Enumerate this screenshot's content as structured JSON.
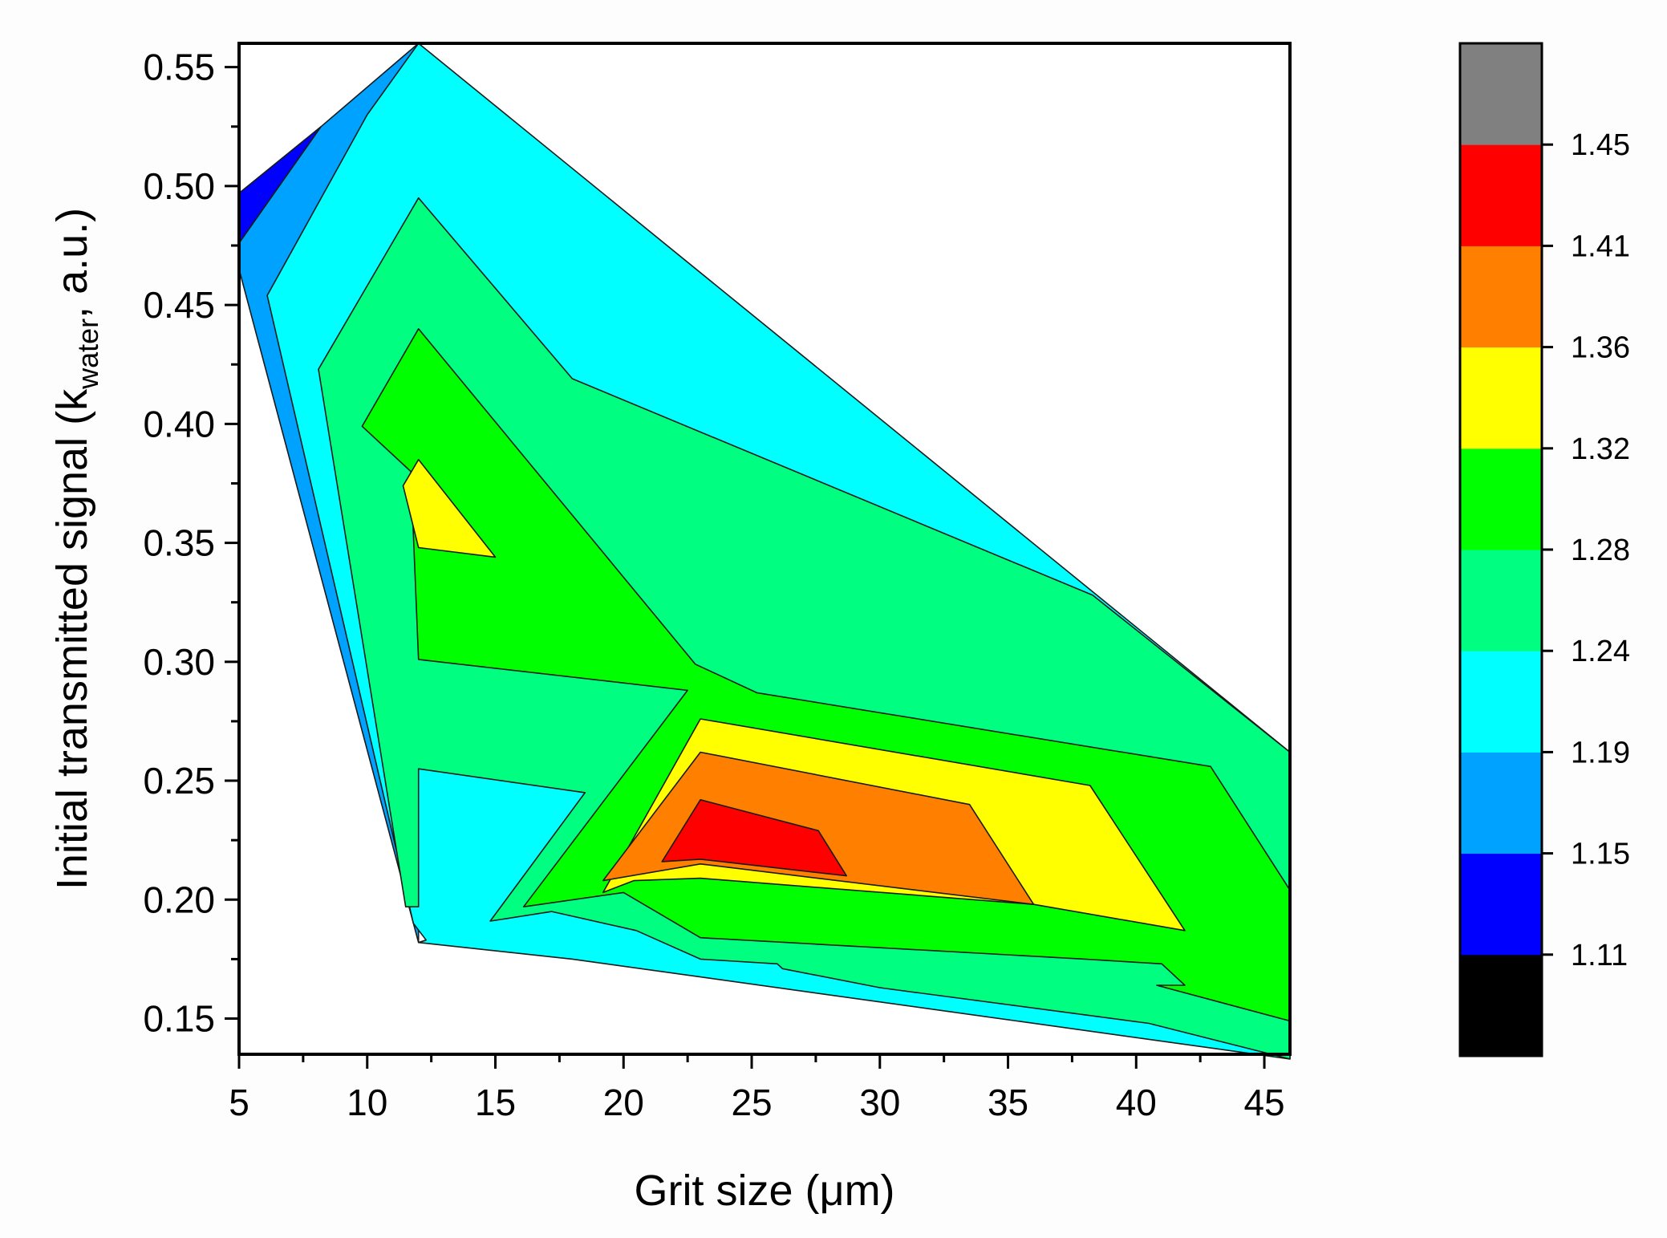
{
  "chart_data": {
    "type": "contour",
    "title": "",
    "xlabel": "Grit size (μm)",
    "ylabel": {
      "prefix": "Initial transmitted signal (k",
      "subscript": "water",
      "suffix": ", a.u.)"
    },
    "xlim": [
      5,
      46
    ],
    "ylim": [
      0.135,
      0.56
    ],
    "x_ticks": [
      "5",
      "10",
      "15",
      "20",
      "25",
      "30",
      "35",
      "40",
      "45"
    ],
    "y_ticks": [
      "0.15",
      "0.20",
      "0.25",
      "0.30",
      "0.35",
      "0.40",
      "0.45",
      "0.50",
      "0.55"
    ],
    "colorbar": {
      "colors": [
        "#000000",
        "#0000ff",
        "#00a2ff",
        "#00ffff",
        "#00ff80",
        "#00ff00",
        "#ffff00",
        "#ff8000",
        "#ff0000",
        "#808080"
      ],
      "levels": [
        "1.11",
        "1.15",
        "1.19",
        "1.24",
        "1.28",
        "1.32",
        "1.36",
        "1.41",
        "1.45"
      ]
    },
    "regions": [
      {
        "level": "1.15-1.19",
        "color": "#0000ff",
        "points": [
          [
            5,
            0.497
          ],
          [
            8.2,
            0.525
          ],
          [
            5,
            0.476
          ]
        ]
      },
      {
        "level": "1.19-1.24",
        "color": "#00a2ff",
        "points": [
          [
            5,
            0.476
          ],
          [
            8.2,
            0.525
          ],
          [
            12,
            0.56
          ],
          [
            12,
            0.182
          ],
          [
            5,
            0.465
          ]
        ]
      },
      {
        "level": "1.24-1.28",
        "color": "#00ffff",
        "points": [
          [
            12,
            0.56
          ],
          [
            46,
            0.262
          ],
          [
            46,
            0.133
          ],
          [
            18,
            0.175
          ],
          [
            12,
            0.182
          ],
          [
            12.3,
            0.183
          ],
          [
            11.8,
            0.19
          ],
          [
            6.1,
            0.454
          ],
          [
            10,
            0.53
          ]
        ]
      },
      {
        "level": "1.28-1.32",
        "color": "#00ff80",
        "points": [
          [
            12,
            0.495
          ],
          [
            18,
            0.419
          ],
          [
            38.3,
            0.328
          ],
          [
            46,
            0.262
          ],
          [
            46,
            0.133
          ],
          [
            40.5,
            0.148
          ],
          [
            30,
            0.163
          ],
          [
            26.2,
            0.171
          ],
          [
            26,
            0.173
          ],
          [
            23,
            0.175
          ],
          [
            20.5,
            0.187
          ],
          [
            17.2,
            0.195
          ],
          [
            14.8,
            0.191
          ],
          [
            18.5,
            0.245
          ],
          [
            12,
            0.255
          ],
          [
            12,
            0.197
          ],
          [
            11.5,
            0.197
          ],
          [
            8.1,
            0.423
          ]
        ]
      },
      {
        "level": "1.32-1.36",
        "color": "#00ff00",
        "points": [
          [
            12,
            0.44
          ],
          [
            22.8,
            0.299
          ],
          [
            25.2,
            0.287
          ],
          [
            42.9,
            0.256
          ],
          [
            46,
            0.204
          ],
          [
            46,
            0.149
          ],
          [
            40.8,
            0.164
          ],
          [
            41.9,
            0.164
          ],
          [
            41,
            0.173
          ],
          [
            38,
            0.175
          ],
          [
            23,
            0.184
          ],
          [
            20,
            0.203
          ],
          [
            16.1,
            0.197
          ],
          [
            22.5,
            0.288
          ],
          [
            12,
            0.301
          ],
          [
            11.7,
            0.38
          ],
          [
            9.8,
            0.399
          ]
        ]
      },
      {
        "level": "1.36-1.41",
        "color": "#ffff00",
        "points": [
          [
            23,
            0.276
          ],
          [
            38.2,
            0.248
          ],
          [
            41.9,
            0.187
          ],
          [
            36,
            0.198
          ],
          [
            23,
            0.209
          ],
          [
            20.4,
            0.208
          ],
          [
            19.2,
            0.203
          ]
        ]
      },
      {
        "level": "1.36-1.41",
        "color": "#ffff00",
        "points": [
          [
            12,
            0.385
          ],
          [
            15,
            0.344
          ],
          [
            12,
            0.348
          ],
          [
            11.4,
            0.374
          ]
        ]
      },
      {
        "level": "1.41-1.45",
        "color": "#ff8000",
        "points": [
          [
            23,
            0.262
          ],
          [
            33.5,
            0.24
          ],
          [
            36,
            0.198
          ],
          [
            23,
            0.215
          ],
          [
            19.2,
            0.208
          ]
        ]
      },
      {
        "level": "1.45+",
        "color": "#ff0000",
        "points": [
          [
            23,
            0.242
          ],
          [
            27.6,
            0.229
          ],
          [
            28.7,
            0.21
          ],
          [
            23,
            0.217
          ],
          [
            21.5,
            0.216
          ]
        ]
      }
    ]
  }
}
